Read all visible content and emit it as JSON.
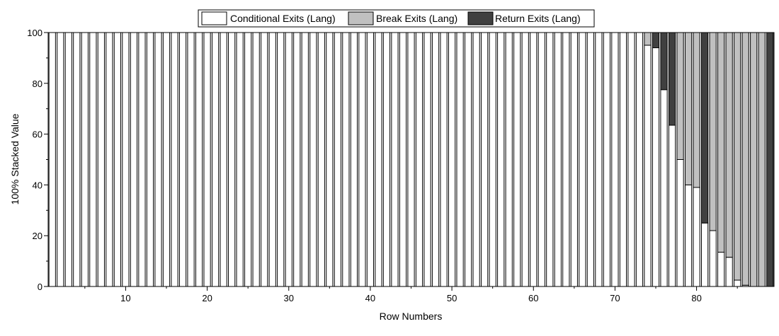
{
  "chart_data": {
    "type": "bar",
    "stacking": "percent",
    "xlabel": "Row Numbers",
    "ylabel": "100% Stacked Value",
    "xlim": [
      0.5,
      89.5
    ],
    "ylim": [
      0,
      100
    ],
    "x_ticks": [
      10,
      20,
      30,
      40,
      50,
      60,
      70,
      80
    ],
    "y_ticks": [
      0,
      20,
      40,
      60,
      80,
      100
    ],
    "legend_position": "top-center",
    "grid": false,
    "colors": {
      "Conditional Exits (Lang)": "#ffffff",
      "Break Exits (Lang)": "#c0c0c0",
      "Return Exits (Lang)": "#404040"
    },
    "x": [
      1,
      2,
      3,
      4,
      5,
      6,
      7,
      8,
      9,
      10,
      11,
      12,
      13,
      14,
      15,
      16,
      17,
      18,
      19,
      20,
      21,
      22,
      23,
      24,
      25,
      26,
      27,
      28,
      29,
      30,
      31,
      32,
      33,
      34,
      35,
      36,
      37,
      38,
      39,
      40,
      41,
      42,
      43,
      44,
      45,
      46,
      47,
      48,
      49,
      50,
      51,
      52,
      53,
      54,
      55,
      56,
      57,
      58,
      59,
      60,
      61,
      62,
      63,
      64,
      65,
      66,
      67,
      68,
      69,
      70,
      71,
      72,
      73,
      74,
      75,
      76,
      77,
      78,
      79,
      80,
      81,
      82,
      83,
      84,
      85,
      86,
      87,
      88,
      89
    ],
    "series": [
      {
        "name": "Conditional Exits (Lang)",
        "values": [
          100,
          100,
          100,
          100,
          100,
          100,
          100,
          100,
          100,
          100,
          100,
          100,
          100,
          100,
          100,
          100,
          100,
          100,
          100,
          100,
          100,
          100,
          100,
          100,
          100,
          100,
          100,
          100,
          100,
          100,
          100,
          100,
          100,
          100,
          100,
          100,
          100,
          100,
          100,
          100,
          100,
          100,
          100,
          100,
          100,
          100,
          100,
          100,
          100,
          100,
          100,
          100,
          100,
          100,
          100,
          100,
          100,
          100,
          100,
          100,
          100,
          100,
          100,
          100,
          100,
          100,
          100,
          100,
          100,
          100,
          100,
          100,
          100,
          95,
          94,
          77.5,
          63.5,
          50,
          40,
          39,
          25,
          22,
          13.5,
          11.5,
          2.5,
          0.5,
          0,
          0,
          0
        ]
      },
      {
        "name": "Break Exits (Lang)",
        "values": [
          0,
          0,
          0,
          0,
          0,
          0,
          0,
          0,
          0,
          0,
          0,
          0,
          0,
          0,
          0,
          0,
          0,
          0,
          0,
          0,
          0,
          0,
          0,
          0,
          0,
          0,
          0,
          0,
          0,
          0,
          0,
          0,
          0,
          0,
          0,
          0,
          0,
          0,
          0,
          0,
          0,
          0,
          0,
          0,
          0,
          0,
          0,
          0,
          0,
          0,
          0,
          0,
          0,
          0,
          0,
          0,
          0,
          0,
          0,
          0,
          0,
          0,
          0,
          0,
          0,
          0,
          0,
          0,
          0,
          0,
          0,
          0,
          0,
          5,
          0,
          0,
          0,
          50,
          60,
          61,
          0,
          78,
          86.5,
          88.5,
          97.5,
          99.5,
          100,
          100,
          0
        ]
      },
      {
        "name": "Return Exits (Lang)",
        "values": [
          0,
          0,
          0,
          0,
          0,
          0,
          0,
          0,
          0,
          0,
          0,
          0,
          0,
          0,
          0,
          0,
          0,
          0,
          0,
          0,
          0,
          0,
          0,
          0,
          0,
          0,
          0,
          0,
          0,
          0,
          0,
          0,
          0,
          0,
          0,
          0,
          0,
          0,
          0,
          0,
          0,
          0,
          0,
          0,
          0,
          0,
          0,
          0,
          0,
          0,
          0,
          0,
          0,
          0,
          0,
          0,
          0,
          0,
          0,
          0,
          0,
          0,
          0,
          0,
          0,
          0,
          0,
          0,
          0,
          0,
          0,
          0,
          0,
          0,
          6,
          22.5,
          36.5,
          0,
          0,
          0,
          75,
          0,
          0,
          0,
          0,
          0,
          0,
          0,
          100
        ]
      }
    ]
  }
}
